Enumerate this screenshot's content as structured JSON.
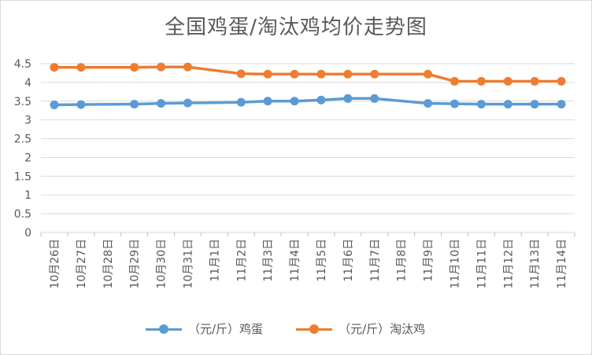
{
  "chart_data": {
    "type": "line",
    "title": "全国鸡蛋/淘汰鸡均价走势图",
    "categories": [
      "10月26日",
      "10月27日",
      "10月28日",
      "10月29日",
      "10月30日",
      "10月31日",
      "11月1日",
      "11月2日",
      "11月3日",
      "11月4日",
      "11月5日",
      "11月6日",
      "11月7日",
      "11月8日",
      "11月9日",
      "11月10日",
      "11月11日",
      "11月12日",
      "11月13日",
      "11月14日"
    ],
    "y_ticks": [
      "0",
      "0.5",
      "1",
      "1.5",
      "2",
      "2.5",
      "3",
      "3.5",
      "4",
      "4.5"
    ],
    "ylim": [
      0,
      4.5
    ],
    "grid": true,
    "legend_position": "bottom",
    "series": [
      {
        "name": "（元/斤）鸡蛋",
        "color": "#5B9BD5",
        "values": [
          3.4,
          3.41,
          null,
          3.42,
          3.44,
          3.45,
          null,
          3.47,
          3.5,
          3.5,
          3.53,
          3.57,
          3.57,
          null,
          3.44,
          3.43,
          3.42,
          3.42,
          3.42,
          3.42
        ]
      },
      {
        "name": "（元/斤）淘汰鸡",
        "color": "#ED7D31",
        "values": [
          4.4,
          4.4,
          null,
          4.4,
          4.41,
          4.41,
          null,
          4.23,
          4.22,
          4.22,
          4.22,
          4.22,
          4.22,
          null,
          4.22,
          4.03,
          4.03,
          4.03,
          4.03,
          4.03
        ]
      }
    ]
  }
}
